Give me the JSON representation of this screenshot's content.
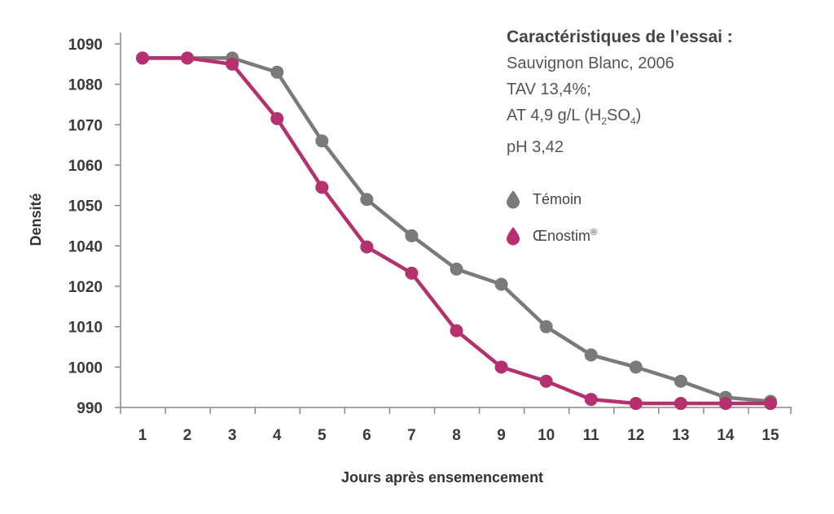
{
  "chart_data": {
    "type": "line",
    "xlabel": "Jours après ensemencement",
    "ylabel": "Densité",
    "x": [
      1,
      2,
      3,
      4,
      5,
      6,
      7,
      8,
      9,
      10,
      11,
      12,
      13,
      14,
      15
    ],
    "y_ticks": [
      "1090",
      "1080",
      "1070",
      "1060",
      "1050",
      "1040",
      "1020",
      "1010",
      "1000",
      "990"
    ],
    "series": [
      {
        "name": "Témoin",
        "color": "#7a7a7a",
        "values": [
          1086.5,
          1086.5,
          1086.5,
          1083,
          1066,
          1051.5,
          1042.5,
          1028.5,
          1021,
          1010,
          1003,
          1000,
          996.5,
          992.5,
          991.5
        ]
      },
      {
        "name": "Œnostim",
        "color": "#b5306e",
        "values": [
          1086.5,
          1086.5,
          1085,
          1071.5,
          1054.5,
          1039.5,
          1026.5,
          1009,
          1000,
          996.5,
          992,
          991,
          991,
          991,
          991
        ]
      }
    ]
  },
  "info": {
    "heading": "Caractéristiques de l’essai :",
    "line1": "Sauvignon Blanc, 2006",
    "line2": "TAV 13,4%;",
    "line3_prefix": "AT 4,9 g/L (H",
    "line3_sub1": "2",
    "line3_mid": "SO",
    "line3_sub2": "4",
    "line3_suffix": ")",
    "line4": "pH 3,42"
  },
  "legend": {
    "temoin_label": "Témoin",
    "oenostim_label": "Œnostim",
    "oenostim_mark": "®"
  }
}
